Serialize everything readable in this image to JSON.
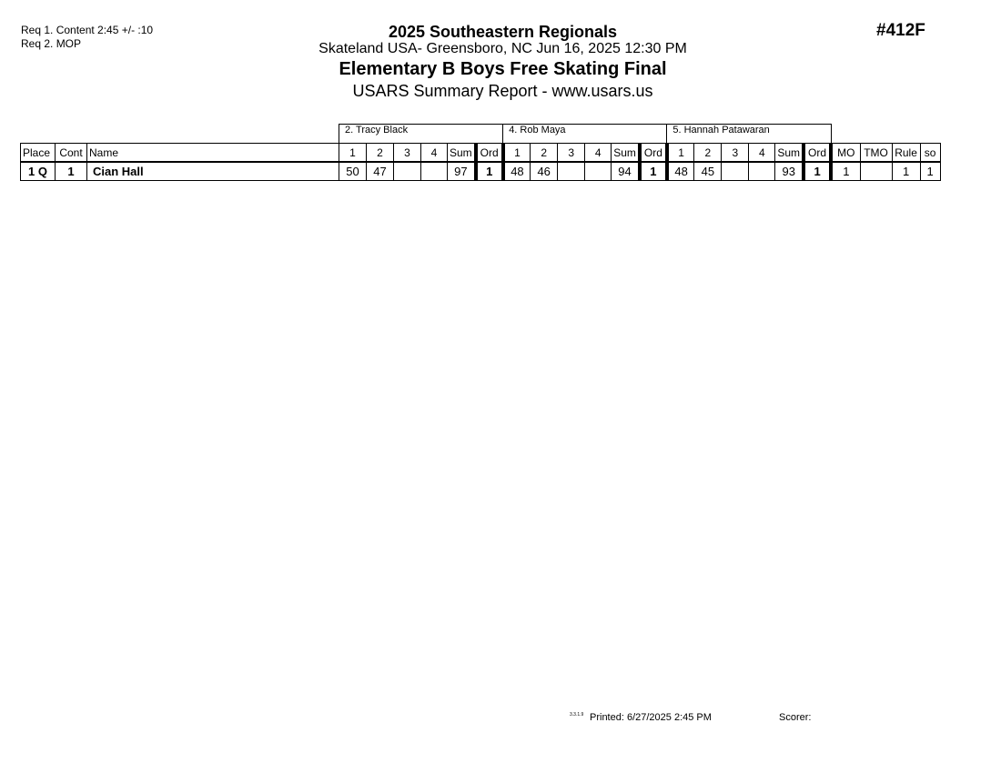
{
  "requirements": [
    "Req  1.  Content 2:45 +/- :10",
    "Req  2.  MOP"
  ],
  "header": {
    "event": "2025 Southeastern Regionals",
    "location": "Skateland USA- Greensboro, NC  Jun 16, 2025  12:30 PM",
    "title": "Elementary B Boys Free Skating Final",
    "subtitle": "USARS Summary Report - www.usars.us",
    "event_number": "#412F"
  },
  "judges": [
    "2. Tracy Black",
    "4.  Rob Maya",
    "5.  Hannah Patawaran"
  ],
  "columns": {
    "place": "Place",
    "cont": "Cont",
    "name": "Name",
    "scores": [
      "1",
      "2",
      "3",
      "4",
      "Sum",
      "Ord"
    ],
    "mo": "MO",
    "tmo": "TMO",
    "rule": "Rule",
    "so": "so"
  },
  "rows": [
    {
      "place": "1 Q",
      "cont": "1",
      "name": "Cian Hall",
      "judges": [
        [
          "50",
          "47",
          "",
          "",
          "97",
          "1"
        ],
        [
          "48",
          "46",
          "",
          "",
          "94",
          "1"
        ],
        [
          "48",
          "45",
          "",
          "",
          "93",
          "1"
        ]
      ],
      "mo": "1",
      "tmo": "",
      "rule": "1",
      "so": "1"
    }
  ],
  "footer": {
    "version": "3.3.1.9",
    "printed": "Printed:  6/27/2025  2:45 PM",
    "scorer": "Scorer:"
  }
}
